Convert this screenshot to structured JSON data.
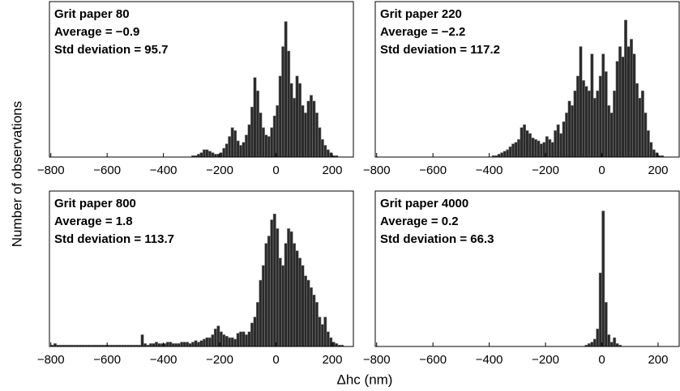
{
  "ylabel": "Number of observations",
  "xlabel": "Δhc (nm)",
  "chart_data": [
    {
      "type": "histogram",
      "annotations": [
        "Grit paper 80",
        "Average = −0.9",
        "Std deviation = 95.7"
      ],
      "color": "#2a2a2a",
      "xlim": [
        -805,
        275
      ],
      "ylim": [
        0,
        100
      ],
      "xticks": [
        {
          "value": -800,
          "label": "−800"
        },
        {
          "value": -600,
          "label": "−600"
        },
        {
          "value": -400,
          "label": "−400"
        },
        {
          "value": -200,
          "label": "−200"
        },
        0,
        200
      ],
      "bins": [
        -300,
        -290,
        -280,
        -270,
        -260,
        -250,
        -240,
        -230,
        -220,
        -210,
        -200,
        -190,
        -180,
        -170,
        -160,
        -150,
        -140,
        -130,
        -120,
        -110,
        -100,
        -90,
        -80,
        -70,
        -60,
        -50,
        -40,
        -30,
        -20,
        -10,
        0,
        10,
        20,
        30,
        40,
        50,
        60,
        70,
        80,
        90,
        100,
        110,
        120,
        130,
        140,
        150,
        160,
        170,
        180,
        190,
        200,
        210,
        220,
        230,
        240,
        250,
        260
      ],
      "values": [
        1,
        1,
        2,
        3,
        5,
        5,
        4,
        3,
        2,
        2,
        3,
        6,
        9,
        14,
        20,
        18,
        11,
        8,
        10,
        15,
        22,
        34,
        54,
        45,
        30,
        20,
        15,
        14,
        20,
        28,
        35,
        55,
        75,
        92,
        72,
        50,
        40,
        55,
        50,
        35,
        30,
        38,
        42,
        38,
        30,
        20,
        12,
        8,
        5,
        3,
        1,
        1,
        0,
        0,
        0,
        0
      ]
    },
    {
      "type": "histogram",
      "annotations": [
        "Grit paper 220",
        "Average = −2.2",
        "Std deviation = 117.2"
      ],
      "color": "#2a2a2a",
      "xlim": [
        -805,
        275
      ],
      "ylim": [
        0,
        100
      ],
      "xticks": [
        {
          "value": -800,
          "label": "−800"
        },
        {
          "value": -600,
          "label": "−600"
        },
        {
          "value": -400,
          "label": "−400"
        },
        {
          "value": -200,
          "label": "−200"
        },
        0,
        200
      ],
      "bins": [
        -400,
        -390,
        -380,
        -370,
        -360,
        -350,
        -340,
        -330,
        -320,
        -310,
        -300,
        -290,
        -280,
        -270,
        -260,
        -250,
        -240,
        -230,
        -220,
        -210,
        -200,
        -190,
        -180,
        -170,
        -160,
        -150,
        -140,
        -130,
        -120,
        -110,
        -100,
        -90,
        -80,
        -70,
        -60,
        -50,
        -40,
        -30,
        -20,
        -10,
        0,
        10,
        20,
        30,
        40,
        50,
        60,
        70,
        80,
        90,
        100,
        110,
        120,
        130,
        140,
        150,
        160,
        170,
        180,
        190,
        200,
        210,
        220,
        230,
        240,
        250,
        260
      ],
      "values": [
        0,
        1,
        1,
        2,
        3,
        4,
        5,
        7,
        9,
        10,
        12,
        20,
        22,
        18,
        16,
        13,
        12,
        11,
        9,
        10,
        14,
        12,
        10,
        18,
        22,
        16,
        24,
        30,
        38,
        35,
        45,
        55,
        75,
        52,
        48,
        45,
        70,
        40,
        45,
        55,
        70,
        58,
        35,
        30,
        45,
        65,
        75,
        68,
        93,
        75,
        80,
        70,
        50,
        40,
        45,
        30,
        18,
        10,
        5,
        3,
        1,
        1,
        0,
        0,
        0,
        0
      ]
    },
    {
      "type": "histogram",
      "annotations": [
        "Grit paper 800",
        "Average = 1.8",
        "Std deviation = 113.7"
      ],
      "color": "#2a2a2a",
      "xlim": [
        -805,
        275
      ],
      "ylim": [
        0,
        100
      ],
      "xticks": [
        {
          "value": -800,
          "label": "−800"
        },
        {
          "value": -600,
          "label": "−600"
        },
        {
          "value": -400,
          "label": "−400"
        },
        {
          "value": -200,
          "label": "−200"
        },
        0,
        200
      ],
      "bins": [
        -800,
        -790,
        -780,
        -770,
        -760,
        -750,
        -740,
        -730,
        -720,
        -710,
        -700,
        -690,
        -680,
        -670,
        -660,
        -650,
        -640,
        -630,
        -620,
        -610,
        -600,
        -590,
        -580,
        -570,
        -560,
        -550,
        -540,
        -530,
        -520,
        -510,
        -500,
        -490,
        -480,
        -470,
        -460,
        -450,
        -440,
        -430,
        -420,
        -410,
        -400,
        -390,
        -380,
        -370,
        -360,
        -350,
        -340,
        -330,
        -320,
        -310,
        -300,
        -290,
        -280,
        -270,
        -260,
        -250,
        -240,
        -230,
        -220,
        -210,
        -200,
        -190,
        -180,
        -170,
        -160,
        -150,
        -140,
        -130,
        -120,
        -110,
        -100,
        -90,
        -80,
        -70,
        -60,
        -50,
        -40,
        -30,
        -20,
        -10,
        0,
        10,
        20,
        30,
        40,
        50,
        60,
        70,
        80,
        90,
        100,
        110,
        120,
        130,
        140,
        150,
        160,
        170,
        180,
        190,
        200,
        210,
        220,
        230,
        240,
        250
      ],
      "values": [
        1,
        2,
        1,
        1,
        1,
        1,
        1,
        1,
        1,
        1,
        1,
        1,
        1,
        1,
        1,
        1,
        1,
        1,
        1,
        1,
        1,
        1,
        1,
        1,
        1,
        1,
        1,
        1,
        1,
        1,
        1,
        1,
        8,
        2,
        1,
        2,
        2,
        3,
        2,
        2,
        2,
        3,
        3,
        2,
        2,
        2,
        3,
        3,
        3,
        2,
        3,
        4,
        3,
        4,
        5,
        6,
        6,
        8,
        12,
        14,
        10,
        8,
        7,
        6,
        6,
        5,
        9,
        10,
        10,
        8,
        10,
        16,
        20,
        30,
        45,
        55,
        70,
        75,
        86,
        90,
        80,
        60,
        55,
        70,
        80,
        78,
        70,
        65,
        60,
        55,
        48,
        45,
        40,
        35,
        30,
        20,
        15,
        20,
        10,
        6,
        3,
        2,
        1,
        1,
        0
      ]
    },
    {
      "type": "histogram",
      "annotations": [
        "Grit paper 4000",
        "Average = 0.2",
        "Std deviation = 66.3"
      ],
      "color": "#2a2a2a",
      "xlim": [
        -805,
        275
      ],
      "ylim": [
        0,
        100
      ],
      "xticks": [
        {
          "value": -800,
          "label": "−800"
        },
        {
          "value": -600,
          "label": "−600"
        },
        {
          "value": -400,
          "label": "−400"
        },
        {
          "value": -200,
          "label": "−200"
        },
        0,
        200
      ],
      "bins": [
        -60,
        -50,
        -40,
        -30,
        -20,
        -10,
        0,
        10,
        20,
        30,
        40,
        50,
        60,
        70
      ],
      "values": [
        1,
        2,
        3,
        5,
        12,
        50,
        92,
        30,
        8,
        3,
        6,
        2,
        1
      ]
    }
  ]
}
